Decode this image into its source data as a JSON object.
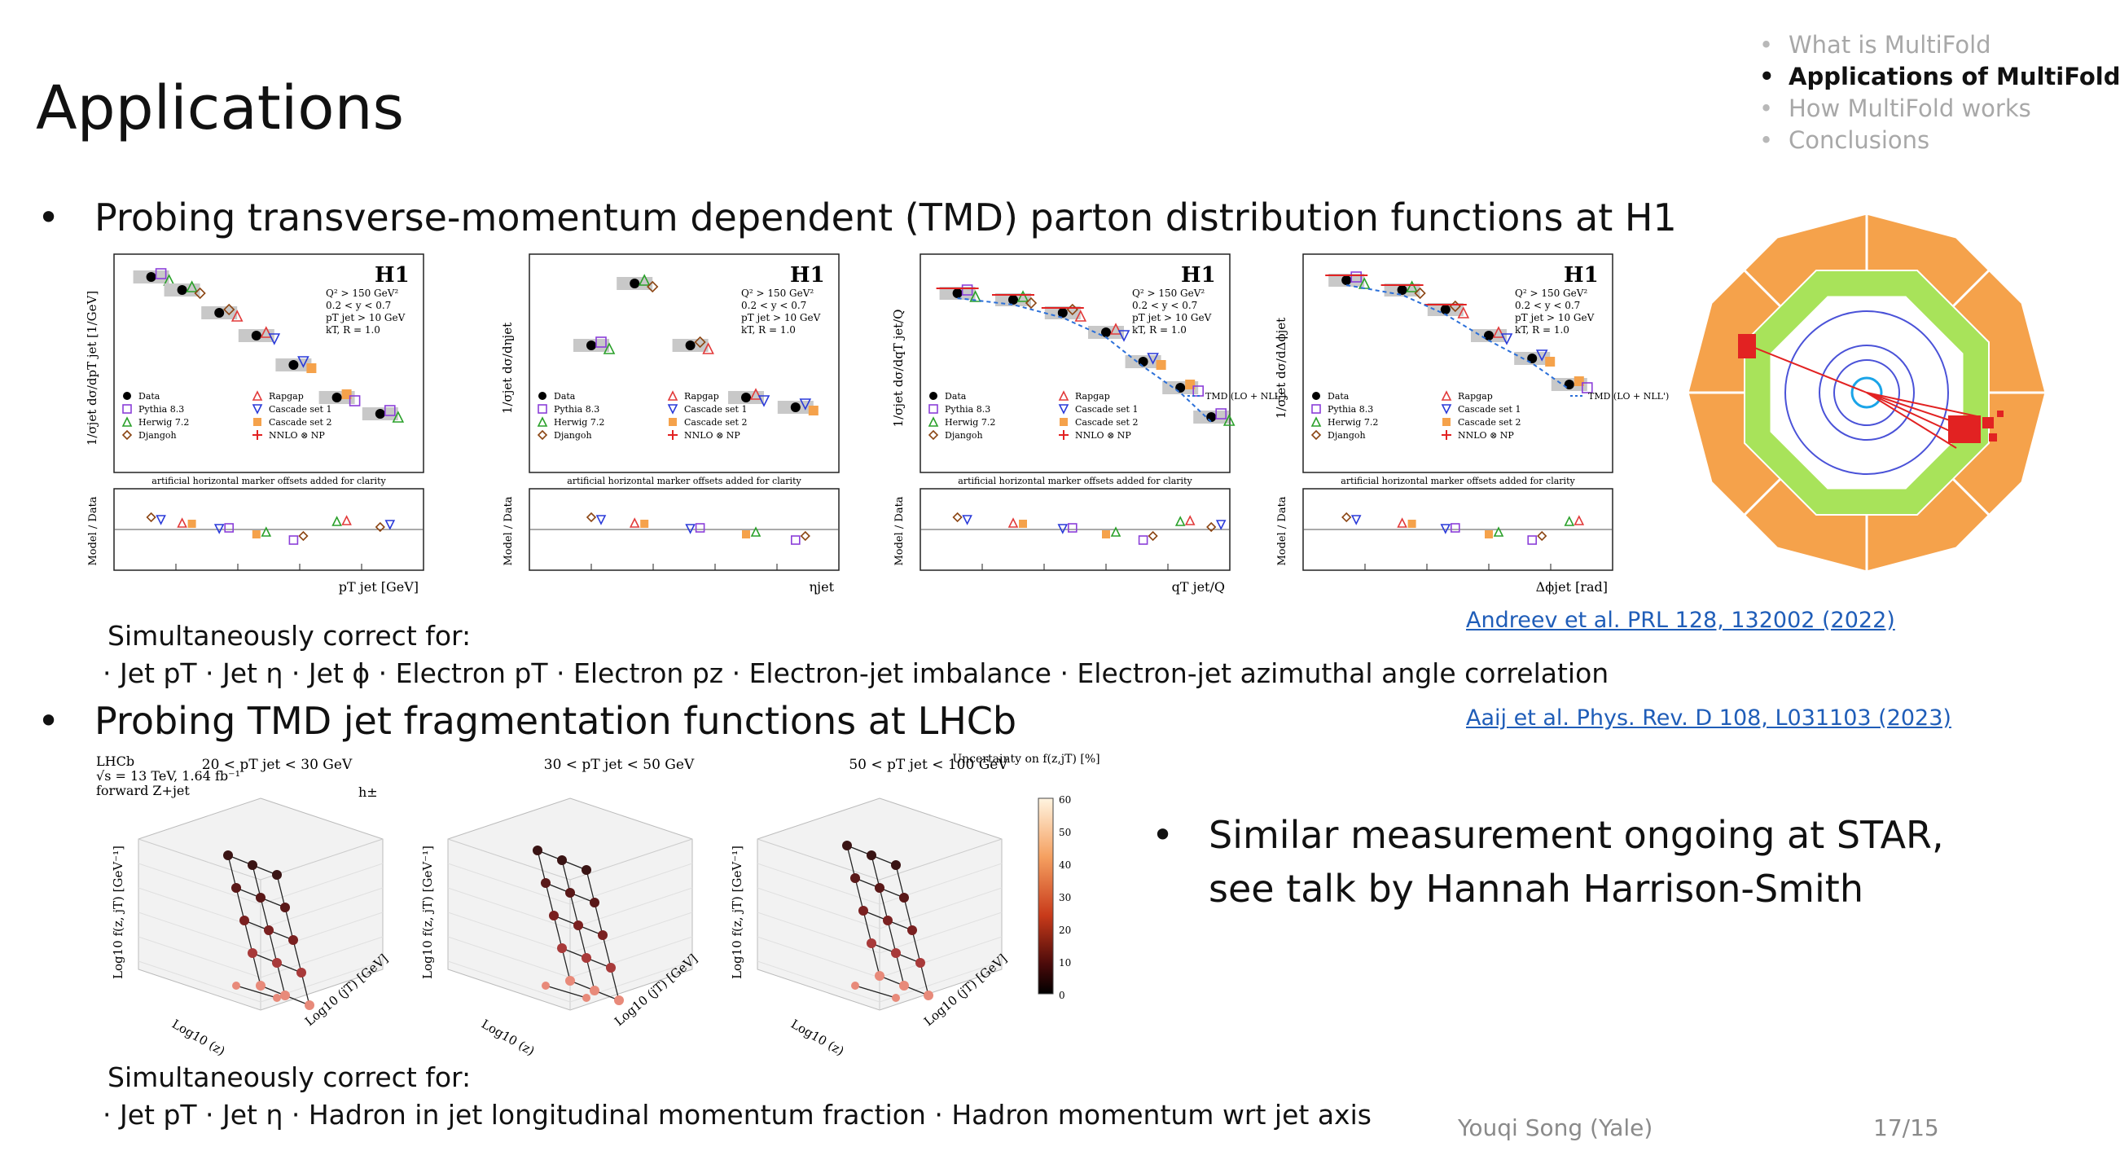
{
  "slide": {
    "title": "Applications",
    "toc": [
      {
        "label": "What is MultiFold",
        "active": false
      },
      {
        "label": "Applications of MultiFold",
        "active": true
      },
      {
        "label": "How MultiFold works",
        "active": false
      },
      {
        "label": "Conclusions",
        "active": false
      }
    ],
    "bullets": [
      {
        "text": "Probing transverse-momentum dependent (TMD) parton distribution functions at H1"
      },
      {
        "text": "Probing TMD jet fragmentation functions at LHCb"
      },
      {
        "text": "Similar measurement ongoing at STAR,",
        "text2": "see talk by Hannah Harrison-Smith"
      }
    ],
    "h1_note": {
      "heading": "Simultaneously correct for:",
      "items": "· Jet pT · Jet η · Jet ϕ · Electron pT · Electron pz · Electron-jet imbalance · Electron-jet azimuthal angle correlation"
    },
    "lhcb_note": {
      "heading": "Simultaneously correct for:",
      "items": "· Jet pT · Jet η · Hadron in jet longitudinal momentum fraction · Hadron momentum wrt jet axis"
    },
    "refs": {
      "h1": "Andreev et al. PRL 128, 132002 (2022)",
      "lhcb": "Aaij et al. Phys. Rev. D 108, L031103 (2023)"
    },
    "footer": {
      "author": "Youqi Song (Yale)",
      "page": "17/15"
    }
  },
  "h1_plots": {
    "experiment": "H1",
    "cuts": [
      "Q² > 150 GeV²",
      "0.2 < y < 0.7",
      "pT jet > 10 GeV",
      "kT, R = 1.0"
    ],
    "artificial_note": "artificial horizontal marker offsets added for clarity",
    "ratio_label": "Model / Data",
    "legend": [
      "Data",
      "Pythia 8.3",
      "Herwig 7.2",
      "Djangoh",
      "Rapgap",
      "Cascade set 1",
      "Cascade set 2",
      "NNLO ⊗ NP",
      "TMD (LO + NLL')"
    ],
    "panels": [
      {
        "ylabel": "1/σjet dσ/dpT jet [1/GeV]",
        "xlabel": "pT jet [GeV]"
      },
      {
        "ylabel": "1/σjet dσ/dηjet",
        "xlabel": "ηjet"
      },
      {
        "ylabel": "1/σjet dσ/dqT jet/Q",
        "xlabel": "qT jet/Q"
      },
      {
        "ylabel": "1/σjet dσ/dΔϕjet",
        "xlabel": "Δϕjet [rad]"
      }
    ]
  },
  "lhcb_plots": {
    "experiment": "LHCb",
    "conditions": [
      "√s = 13 TeV, 1.64 fb⁻¹",
      "forward Z+jet"
    ],
    "hadron": "h±",
    "panels": [
      {
        "title": "20 < pT jet < 30 GeV"
      },
      {
        "title": "30 < pT jet < 50 GeV"
      },
      {
        "title": "50 < pT jet < 100 GeV"
      }
    ],
    "zlabel": "Log10 f(z, jT) [GeV⁻¹]",
    "xlabel": "Log10 (z)",
    "ylabel": "Log10 (jT) [GeV]",
    "colorbar_title": "Uncertainty on f(z,jT) [%]",
    "colorbar_ticks": [
      "60",
      "50",
      "40",
      "30",
      "20",
      "10",
      "0"
    ]
  },
  "colors": {
    "link": "#1f5db8",
    "muted": "#a8a8a8",
    "orange": "#f5a24b",
    "green": "#a8e35a"
  }
}
